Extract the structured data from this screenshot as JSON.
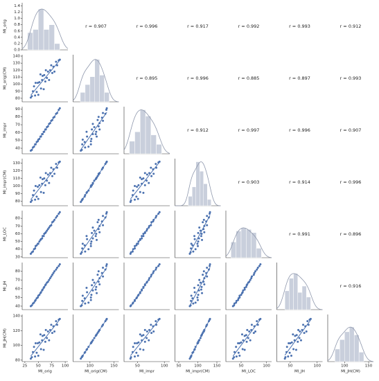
{
  "chart_data": {
    "type": "pairplot",
    "color": "#4c72b0",
    "hist_color": "#c9cfdc",
    "kde_color": "#8e97ac",
    "hist_ylim": [
      0,
      1.5
    ],
    "hist_yticks": [
      {
        "value": 0,
        "label": "0.0"
      },
      {
        "value": 0.2,
        "label": "0.2"
      },
      {
        "value": 0.4,
        "label": "0.4"
      },
      {
        "value": 0.6,
        "label": "0.6"
      },
      {
        "value": 0.8,
        "label": "0.8"
      },
      {
        "value": 1,
        "label": "1.0"
      },
      {
        "value": 1.2,
        "label": "1.2"
      },
      {
        "value": 1.4,
        "label": "1.4"
      }
    ],
    "variables": [
      {
        "name": "MI_orig",
        "values": [
          36,
          38,
          40,
          42,
          44,
          45,
          47,
          49,
          50,
          52,
          54,
          55,
          57,
          58,
          60,
          61,
          63,
          64,
          66,
          68,
          70,
          72,
          74,
          76,
          78,
          80,
          83,
          85,
          88,
          90
        ],
        "xlim": [
          20,
          105
        ],
        "xticks": [
          25,
          50,
          75,
          100
        ],
        "hist": {
          "bins": [
            30,
            40,
            50,
            60,
            70,
            80,
            90
          ],
          "counts": [
            0.55,
            0.65,
            1.3,
            0.65,
            0.8,
            0.2
          ]
        }
      },
      {
        "name": "MI_orig(CM)",
        "values": [
          81,
          83,
          90,
          97,
          84,
          102,
          89,
          102,
          85,
          103,
          114,
          94,
          106,
          112,
          93,
          113,
          104,
          120,
          109,
          118,
          106,
          120,
          127,
          116,
          125,
          118,
          132,
          127,
          134,
          135
        ],
        "xlim": [
          65,
          160
        ],
        "xticks": [
          100,
          150
        ],
        "ylim": [
          75,
          142
        ],
        "yticks": [
          80,
          90,
          100,
          110,
          120,
          130,
          140
        ],
        "hist": {
          "bins": [
            80,
            90,
            100,
            110,
            120,
            130,
            140
          ],
          "counts": [
            0.3,
            0.55,
            0.8,
            1.35,
            0.85,
            0.3
          ]
        }
      },
      {
        "name": "MI_impr",
        "values": [
          37,
          38,
          41,
          42,
          45,
          45,
          48,
          49,
          51,
          52,
          55,
          55,
          58,
          58,
          61,
          61,
          64,
          64,
          67,
          68,
          71,
          72,
          75,
          76,
          79,
          80,
          84,
          85,
          89,
          91
        ],
        "xlim": [
          25,
          110
        ],
        "xticks": [
          50,
          100
        ],
        "ylim": [
          33,
          93
        ],
        "yticks": [
          40,
          50,
          60,
          70,
          80,
          90
        ],
        "hist": {
          "bins": [
            35,
            45,
            55,
            65,
            75,
            85,
            95
          ],
          "counts": [
            0.4,
            0.7,
            1.4,
            1.2,
            0.6,
            0.3
          ]
        }
      },
      {
        "name": "MI_impr(CM)",
        "values": [
          79,
          81,
          88,
          94,
          82,
          100,
          86,
          99,
          83,
          101,
          111,
          92,
          103,
          109,
          91,
          110,
          101,
          117,
          107,
          115,
          104,
          117,
          124,
          113,
          122,
          116,
          129,
          124,
          131,
          132
        ],
        "xlim": [
          40,
          160
        ],
        "xticks": [
          50,
          100,
          150
        ],
        "ylim": [
          74,
          136
        ],
        "yticks": [
          80,
          90,
          100,
          110,
          120,
          130
        ],
        "hist": {
          "bins": [
            75,
            85,
            95,
            105,
            115,
            125,
            135
          ],
          "counts": [
            0.3,
            0.6,
            1.4,
            1.1,
            0.7,
            0.2
          ]
        }
      },
      {
        "name": "MI_LOC",
        "values": [
          34,
          36,
          37,
          40,
          41,
          44,
          45,
          47,
          47,
          50,
          52,
          53,
          54,
          57,
          57,
          60,
          61,
          62,
          64,
          66,
          68,
          70,
          71,
          75,
          76,
          78,
          81,
          83,
          86,
          88
        ],
        "xlim": [
          20,
          110
        ],
        "xticks": [
          50,
          100
        ],
        "ylim": [
          29,
          90
        ],
        "yticks": [
          30,
          40,
          50,
          60,
          70,
          80
        ],
        "hist": {
          "bins": [
            30,
            40,
            50,
            60,
            70,
            80,
            90
          ],
          "counts": [
            0.5,
            0.85,
            0.95,
            0.9,
            0.8,
            0.3
          ]
        }
      },
      {
        "name": "MI_JH",
        "values": [
          40,
          41,
          43,
          44,
          46,
          47,
          49,
          50,
          52,
          53,
          55,
          56,
          58,
          59,
          61,
          62,
          64,
          65,
          67,
          68,
          70,
          72,
          74,
          76,
          78,
          80,
          82,
          84,
          86,
          88
        ],
        "xlim": [
          25,
          110
        ],
        "xticks": [
          50,
          100
        ],
        "ylim": [
          36,
          90
        ],
        "yticks": [
          40,
          50,
          60,
          70,
          80
        ],
        "hist": {
          "bins": [
            40,
            48,
            56,
            64,
            72,
            80,
            88
          ],
          "counts": [
            0.6,
            1.0,
            1.15,
            0.55,
            0.75,
            0.4
          ]
        }
      },
      {
        "name": "MI_JH(CM)",
        "values": [
          82,
          84,
          91,
          98,
          85,
          103,
          90,
          103,
          86,
          104,
          115,
          95,
          107,
          113,
          94,
          114,
          105,
          121,
          110,
          119,
          107,
          121,
          128,
          117,
          126,
          119,
          133,
          128,
          135,
          136
        ],
        "xlim": [
          65,
          160
        ],
        "xticks": [
          100,
          150
        ],
        "ylim": [
          78,
          142
        ],
        "yticks": [
          80,
          100,
          120,
          140
        ],
        "hist": {
          "bins": [
            80,
            90,
            100,
            110,
            120,
            130,
            140
          ],
          "counts": [
            0.4,
            0.7,
            0.95,
            1.1,
            0.85,
            0.3
          ]
        }
      }
    ],
    "correlations": {
      "values": [
        0.907,
        0.996,
        0.917,
        0.992,
        0.993,
        0.912,
        0.895,
        0.996,
        0.885,
        0.897,
        0.993,
        0.912,
        0.997,
        0.996,
        0.907,
        0.903,
        0.914,
        0.996,
        0.991,
        0.896,
        0.916
      ],
      "value_labels": [
        "r = 0.907",
        "r = 0.996",
        "r = 0.917",
        "r = 0.992",
        "r = 0.993",
        "r = 0.912",
        "r = 0.895",
        "r = 0.996",
        "r = 0.885",
        "r = 0.897",
        "r = 0.993",
        "r = 0.912",
        "r = 0.997",
        "r = 0.996",
        "r = 0.907",
        "r = 0.903",
        "r = 0.914",
        "r = 0.996",
        "r = 0.991",
        "r = 0.896",
        "r = 0.916"
      ]
    }
  }
}
